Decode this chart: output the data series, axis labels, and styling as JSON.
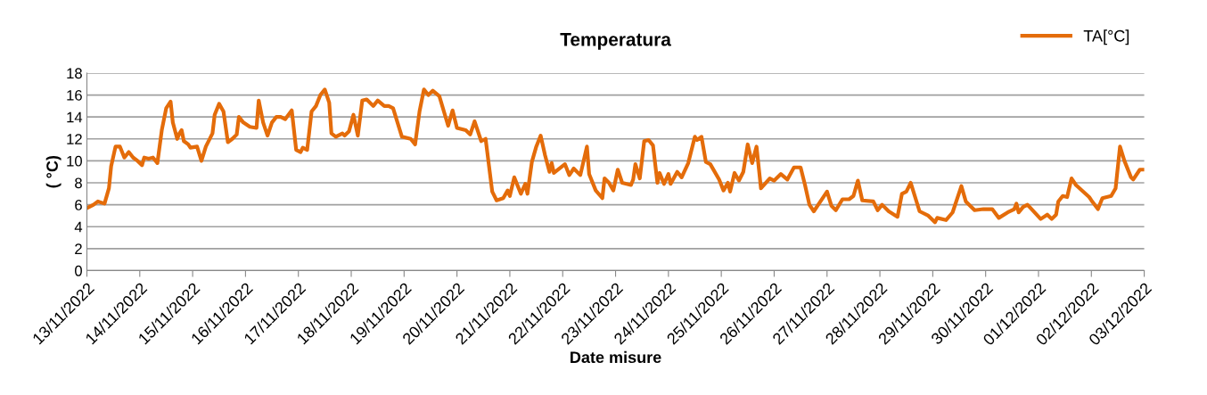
{
  "chart_data": {
    "type": "line",
    "title": "Temperatura",
    "xlabel": "Date misure",
    "ylabel": "( °C)",
    "xlim": [
      "2022-11-13T00:00",
      "2022-12-03T00:00"
    ],
    "xticks": [
      {
        "value": "2022-11-13",
        "label": "13/11/2022"
      },
      {
        "value": "2022-11-14",
        "label": "14/11/2022"
      },
      {
        "value": "2022-11-15",
        "label": "15/11/2022"
      },
      {
        "value": "2022-11-16",
        "label": "16/11/2022"
      },
      {
        "value": "2022-11-17",
        "label": "17/11/2022"
      },
      {
        "value": "2022-11-18",
        "label": "18/11/2022"
      },
      {
        "value": "2022-11-19",
        "label": "19/11/2022"
      },
      {
        "value": "2022-11-20",
        "label": "20/11/2022"
      },
      {
        "value": "2022-11-21",
        "label": "21/11/2022"
      },
      {
        "value": "2022-11-22",
        "label": "22/11/2022"
      },
      {
        "value": "2022-11-23",
        "label": "23/11/2022"
      },
      {
        "value": "2022-11-24",
        "label": "24/11/2022"
      },
      {
        "value": "2022-11-25",
        "label": "25/11/2022"
      },
      {
        "value": "2022-11-26",
        "label": "26/11/2022"
      },
      {
        "value": "2022-11-27",
        "label": "27/11/2022"
      },
      {
        "value": "2022-11-28",
        "label": "28/11/2022"
      },
      {
        "value": "2022-11-29",
        "label": "29/11/2022"
      },
      {
        "value": "2022-11-30",
        "label": "30/11/2022"
      },
      {
        "value": "2022-12-01",
        "label": "01/12/2022"
      },
      {
        "value": "2022-12-02",
        "label": "02/12/2022"
      },
      {
        "value": "2022-12-03",
        "label": "03/12/2022"
      }
    ],
    "ylim": [
      0,
      18
    ],
    "yticks": [
      0,
      2,
      4,
      6,
      8,
      10,
      12,
      14,
      16,
      18
    ],
    "grid": "y",
    "legend": "top right",
    "marker": "none",
    "line_style": "solid",
    "series": [
      {
        "name": "TA[°C]",
        "color": "#e46c0a",
        "x": [
          "2022-11-13T00:00",
          "2022-11-13T03:00",
          "2022-11-13T05:00",
          "2022-11-13T08:00",
          "2022-11-13T10:00",
          "2022-11-13T11:00",
          "2022-11-13T13:00",
          "2022-11-13T15:00",
          "2022-11-13T17:00",
          "2022-11-13T19:00",
          "2022-11-13T21:00",
          "2022-11-13T23:00",
          "2022-11-14T01:00",
          "2022-11-14T02:00",
          "2022-11-14T04:00",
          "2022-11-14T06:00",
          "2022-11-14T08:00",
          "2022-11-14T10:00",
          "2022-11-14T12:00",
          "2022-11-14T14:00",
          "2022-11-14T15:00",
          "2022-11-14T17:00",
          "2022-11-14T18:00",
          "2022-11-14T19:00",
          "2022-11-14T20:00",
          "2022-11-14T22:00",
          "2022-11-14T23:00",
          "2022-11-15T02:00",
          "2022-11-15T04:00",
          "2022-11-15T06:00",
          "2022-11-15T09:00",
          "2022-11-15T10:00",
          "2022-11-15T12:00",
          "2022-11-15T14:00",
          "2022-11-15T16:00",
          "2022-11-15T18:00",
          "2022-11-15T20:00",
          "2022-11-15T21:00",
          "2022-11-15T23:00",
          "2022-11-16T02:00",
          "2022-11-16T05:00",
          "2022-11-16T06:00",
          "2022-11-16T08:00",
          "2022-11-16T10:00",
          "2022-11-16T12:00",
          "2022-11-16T14:00",
          "2022-11-16T16:00",
          "2022-11-16T18:00",
          "2022-11-16T21:00",
          "2022-11-16T23:00",
          "2022-11-17T01:00",
          "2022-11-17T02:00",
          "2022-11-17T04:00",
          "2022-11-17T06:00",
          "2022-11-17T08:00",
          "2022-11-17T10:00",
          "2022-11-17T12:00",
          "2022-11-17T14:00",
          "2022-11-17T15:00",
          "2022-11-17T17:00",
          "2022-11-17T20:00",
          "2022-11-17T21:00",
          "2022-11-17T23:00",
          "2022-11-18T01:00",
          "2022-11-18T03:00",
          "2022-11-18T05:00",
          "2022-11-18T07:00",
          "2022-11-18T10:00",
          "2022-11-18T12:00",
          "2022-11-18T15:00",
          "2022-11-18T17:00",
          "2022-11-18T19:00",
          "2022-11-18T23:00",
          "2022-11-19T03:00",
          "2022-11-19T05:00",
          "2022-11-19T07:00",
          "2022-11-19T09:00",
          "2022-11-19T11:00",
          "2022-11-19T13:00",
          "2022-11-19T16:00",
          "2022-11-19T20:00",
          "2022-11-19T22:00",
          "2022-11-20T00:00",
          "2022-11-20T04:00",
          "2022-11-20T06:00",
          "2022-11-20T08:00",
          "2022-11-20T11:00",
          "2022-11-20T13:00",
          "2022-11-20T16:00",
          "2022-11-20T18:00",
          "2022-11-20T21:00",
          "2022-11-20T23:00",
          "2022-11-21T00:00",
          "2022-11-21T02:00",
          "2022-11-21T05:00",
          "2022-11-21T07:00",
          "2022-11-21T08:00",
          "2022-11-21T10:00",
          "2022-11-21T12:00",
          "2022-11-21T14:00",
          "2022-11-21T16:00",
          "2022-11-21T18:00",
          "2022-11-21T19:00",
          "2022-11-21T20:00",
          "2022-11-22T01:00",
          "2022-11-22T03:00",
          "2022-11-22T05:00",
          "2022-11-22T08:00",
          "2022-11-22T11:00",
          "2022-11-22T12:00",
          "2022-11-22T15:00",
          "2022-11-22T18:00",
          "2022-11-22T19:00",
          "2022-11-22T21:00",
          "2022-11-22T23:00",
          "2022-11-23T01:00",
          "2022-11-23T03:00",
          "2022-11-23T07:00",
          "2022-11-23T08:00",
          "2022-11-23T09:00",
          "2022-11-23T11:00",
          "2022-11-23T13:00",
          "2022-11-23T15:00",
          "2022-11-23T17:00",
          "2022-11-23T19:00",
          "2022-11-23T20:00",
          "2022-11-23T22:00",
          "2022-11-24T00:00",
          "2022-11-24T01:00",
          "2022-11-24T04:00",
          "2022-11-24T06:00",
          "2022-11-24T09:00",
          "2022-11-24T12:00",
          "2022-11-24T13:00",
          "2022-11-24T15:00",
          "2022-11-24T17:00",
          "2022-11-24T19:00",
          "2022-11-24T23:00",
          "2022-11-25T01:00",
          "2022-11-25T03:00",
          "2022-11-25T04:00",
          "2022-11-25T06:00",
          "2022-11-25T08:00",
          "2022-11-25T10:00",
          "2022-11-25T12:00",
          "2022-11-25T14:00",
          "2022-11-25T16:00",
          "2022-11-25T18:00",
          "2022-11-25T22:00",
          "2022-11-26T00:00",
          "2022-11-26T03:00",
          "2022-11-26T06:00",
          "2022-11-26T09:00",
          "2022-11-26T12:00",
          "2022-11-26T14:00",
          "2022-11-26T16:00",
          "2022-11-26T18:00",
          "2022-11-26T20:00",
          "2022-11-27T00:00",
          "2022-11-27T02:00",
          "2022-11-27T04:00",
          "2022-11-27T07:00",
          "2022-11-27T10:00",
          "2022-11-27T12:00",
          "2022-11-27T14:00",
          "2022-11-27T16:00",
          "2022-11-27T21:00",
          "2022-11-27T23:00",
          "2022-11-28T01:00",
          "2022-11-28T04:00",
          "2022-11-28T08:00",
          "2022-11-28T10:00",
          "2022-11-28T12:00",
          "2022-11-28T14:00",
          "2022-11-28T18:00",
          "2022-11-28T22:00",
          "2022-11-29T01:00",
          "2022-11-29T02:00",
          "2022-11-29T06:00",
          "2022-11-29T09:00",
          "2022-11-29T13:00",
          "2022-11-29T15:00",
          "2022-11-29T19:00",
          "2022-11-29T23:00",
          "2022-11-30T03:00",
          "2022-11-30T06:00",
          "2022-11-30T10:00",
          "2022-11-30T13:00",
          "2022-11-30T14:00",
          "2022-11-30T15:00",
          "2022-11-30T17:00",
          "2022-11-30T19:00",
          "2022-12-01T01:00",
          "2022-12-01T04:00",
          "2022-12-01T06:00",
          "2022-12-01T08:00",
          "2022-12-01T09:00",
          "2022-12-01T11:00",
          "2022-12-01T13:00",
          "2022-12-01T15:00",
          "2022-12-01T17:00",
          "2022-12-01T23:00",
          "2022-12-02T00:00",
          "2022-12-02T03:00",
          "2022-12-02T05:00",
          "2022-12-02T09:00",
          "2022-12-02T11:00",
          "2022-12-02T13:00",
          "2022-12-02T15:00",
          "2022-12-02T18:00",
          "2022-12-02T19:00",
          "2022-12-02T22:00",
          "2022-12-03T00:00"
        ],
        "values": [
          5.7,
          6.0,
          6.3,
          6.1,
          7.5,
          9.5,
          11.3,
          11.3,
          10.3,
          10.8,
          10.3,
          10.0,
          9.6,
          10.3,
          10.2,
          10.3,
          9.8,
          12.8,
          14.8,
          15.4,
          13.5,
          12.0,
          12.5,
          12.8,
          11.8,
          11.5,
          11.2,
          11.3,
          10.0,
          11.3,
          12.5,
          14.2,
          15.2,
          14.5,
          11.7,
          12.0,
          12.4,
          14.0,
          13.5,
          13.1,
          13.0,
          15.5,
          13.5,
          12.3,
          13.5,
          14.0,
          14.0,
          13.8,
          14.6,
          11.0,
          10.8,
          11.2,
          11.0,
          14.5,
          15.0,
          16.0,
          16.5,
          15.3,
          12.5,
          12.2,
          12.5,
          12.3,
          12.7,
          14.2,
          12.3,
          15.5,
          15.6,
          15.0,
          15.5,
          15.0,
          15.0,
          14.8,
          12.2,
          12.0,
          11.5,
          14.5,
          16.5,
          16.0,
          16.4,
          15.9,
          13.2,
          14.6,
          13.0,
          12.8,
          12.4,
          13.6,
          11.8,
          12.0,
          7.2,
          6.4,
          6.6,
          7.3,
          6.8,
          8.5,
          7.0,
          7.9,
          7.0,
          9.9,
          11.3,
          12.3,
          10.5,
          9.0,
          9.8,
          8.9,
          9.7,
          8.7,
          9.3,
          8.7,
          11.3,
          8.8,
          7.3,
          6.6,
          8.4,
          8.0,
          7.3,
          9.2,
          8.0,
          7.8,
          8.3,
          9.7,
          8.4,
          11.8,
          11.9,
          11.4,
          8.0,
          8.9,
          7.9,
          8.8,
          7.9,
          9.0,
          8.5,
          9.8,
          12.2,
          11.9,
          12.2,
          9.9,
          9.7,
          8.3,
          7.3,
          8.0,
          7.2,
          8.9,
          8.2,
          9.0,
          11.5,
          9.8,
          11.3,
          7.5,
          8.4,
          8.2,
          8.8,
          8.3,
          9.4,
          9.4,
          7.8,
          6.0,
          5.4,
          6.0,
          7.2,
          5.9,
          5.5,
          6.5,
          6.5,
          6.8,
          8.2,
          6.4,
          6.3,
          5.5,
          6.0,
          5.4,
          4.9,
          7.0,
          7.2,
          8.0,
          5.4,
          5.0,
          4.4,
          4.8,
          4.6,
          5.3,
          7.7,
          6.3,
          5.5,
          5.6,
          5.6,
          4.8,
          5.3,
          5.6,
          6.1,
          5.3,
          5.8,
          6.0,
          4.7,
          5.1,
          4.7,
          5.1,
          6.3,
          6.8,
          6.7,
          8.4,
          7.8,
          6.7,
          6.4,
          5.6,
          6.6,
          6.8,
          7.5,
          11.3,
          10.0,
          8.5,
          8.3,
          9.2,
          9.2
        ]
      }
    ]
  }
}
